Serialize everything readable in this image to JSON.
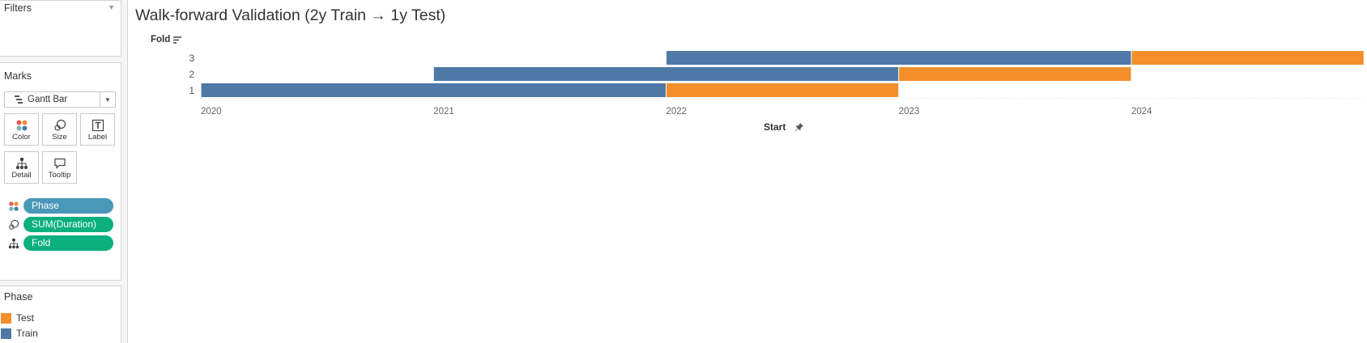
{
  "filters": {
    "title": "Filters"
  },
  "marks": {
    "title": "Marks",
    "mark_type": "Gantt Bar",
    "buttons": [
      {
        "id": "color",
        "label": "Color"
      },
      {
        "id": "size",
        "label": "Size"
      },
      {
        "id": "label",
        "label": "Label"
      },
      {
        "id": "detail",
        "label": "Detail"
      },
      {
        "id": "tooltip",
        "label": "Tooltip"
      }
    ],
    "pills": [
      {
        "label": "Phase",
        "color": "#4a98b8",
        "icon": "color-icon"
      },
      {
        "label": "SUM(Duration)",
        "color": "#0bb07d",
        "icon": "size-icon"
      },
      {
        "label": "Fold",
        "color": "#0bb07d",
        "icon": "detail-icon"
      }
    ]
  },
  "legend": {
    "title": "Phase",
    "items": [
      {
        "label": "Test",
        "color": "#f28e2c"
      },
      {
        "label": "Train",
        "color": "#4e79a7"
      }
    ]
  },
  "view": {
    "title": "Walk-forward Validation (2y Train → 1y Test)",
    "row_header": "Fold"
  },
  "chart_data": {
    "type": "gantt",
    "title": "Walk-forward Validation (2y Train → 1y Test)",
    "y_field": "Fold",
    "x_label": "Start",
    "x_ticks": [
      "2020",
      "2021",
      "2022",
      "2023",
      "2024"
    ],
    "x_range": [
      "2020-01-01",
      "2025-01-01"
    ],
    "folds": [
      "1",
      "2",
      "3"
    ],
    "series_colors": {
      "Train": "#4e79a7",
      "Test": "#f28e2c"
    },
    "bars": [
      {
        "fold": "1",
        "phase": "Train",
        "start": "2020-01-01",
        "end": "2022-01-01"
      },
      {
        "fold": "1",
        "phase": "Test",
        "start": "2022-01-01",
        "end": "2023-01-01"
      },
      {
        "fold": "2",
        "phase": "Train",
        "start": "2021-01-01",
        "end": "2023-01-01"
      },
      {
        "fold": "2",
        "phase": "Test",
        "start": "2023-01-01",
        "end": "2024-01-01"
      },
      {
        "fold": "3",
        "phase": "Train",
        "start": "2022-01-01",
        "end": "2024-01-01"
      },
      {
        "fold": "3",
        "phase": "Test",
        "start": "2024-01-01",
        "end": "2025-01-01"
      }
    ]
  }
}
